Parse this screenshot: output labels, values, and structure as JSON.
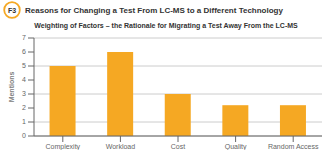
{
  "chart_data": {
    "type": "bar",
    "title": "Reasons for Changing a Test From LC-MS to a Different Technology",
    "subtitle": "Weighting of Factors – the Rationale for Migrating a Test Away From the LC-MS",
    "annotations": [
      "F3"
    ],
    "categories": [
      "Complexity",
      "Workload",
      "Cost",
      "Quality",
      "Random Access"
    ],
    "values": [
      5,
      6,
      3,
      2.2,
      2.2
    ],
    "color": "#F5A823",
    "ylabel": "Mentions",
    "ylim": [
      0,
      7
    ],
    "yticks": [
      0,
      1,
      2,
      3,
      4,
      5,
      6,
      7
    ],
    "grid": true
  }
}
